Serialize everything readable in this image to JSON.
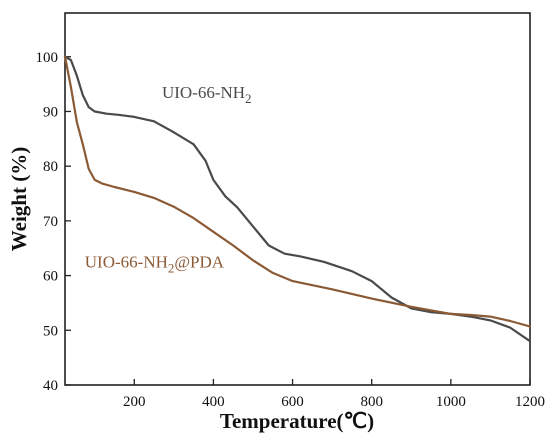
{
  "chart_data": {
    "type": "line",
    "xlabel": "Temperature(℃)",
    "ylabel": "Weight (%)",
    "xlim": [
      25,
      1200
    ],
    "ylim": [
      40,
      108
    ],
    "xticks": [
      200,
      400,
      600,
      800,
      1000,
      1200
    ],
    "yticks": [
      40,
      50,
      60,
      70,
      80,
      90,
      100
    ],
    "grid": false,
    "legend": "none",
    "series": [
      {
        "name": "UIO-66-NH2",
        "label_main": "UIO-66-NH",
        "label_sub": "2",
        "label_suffix": "",
        "color": "#4a4a4a",
        "x": [
          25,
          40,
          55,
          70,
          85,
          100,
          130,
          160,
          200,
          250,
          300,
          350,
          380,
          400,
          430,
          460,
          500,
          540,
          580,
          620,
          680,
          750,
          800,
          850,
          900,
          950,
          1000,
          1050,
          1100,
          1150,
          1200
        ],
        "y": [
          100,
          99.4,
          96.5,
          93,
          90.8,
          90,
          89.6,
          89.4,
          89,
          88.2,
          86.2,
          84,
          81,
          77.5,
          74.5,
          72.5,
          69,
          65.5,
          64,
          63.5,
          62.5,
          60.8,
          59,
          56,
          54,
          53.3,
          53,
          52.5,
          51.8,
          50.5,
          48
        ]
      },
      {
        "name": "UIO-66-NH2@PDA",
        "label_main": "UIO-66-NH",
        "label_sub": "2",
        "label_suffix": "@PDA",
        "color": "#8b5a35",
        "x": [
          25,
          40,
          55,
          70,
          85,
          100,
          120,
          150,
          200,
          250,
          300,
          350,
          400,
          450,
          500,
          550,
          600,
          700,
          800,
          900,
          1000,
          1050,
          1100,
          1150,
          1200
        ],
        "y": [
          100,
          94.5,
          88,
          84,
          79.5,
          77.5,
          76.8,
          76.2,
          75.3,
          74.2,
          72.6,
          70.5,
          68,
          65.5,
          62.8,
          60.5,
          59,
          57.5,
          55.8,
          54.3,
          53,
          52.8,
          52.5,
          51.7,
          50.7
        ]
      }
    ]
  }
}
